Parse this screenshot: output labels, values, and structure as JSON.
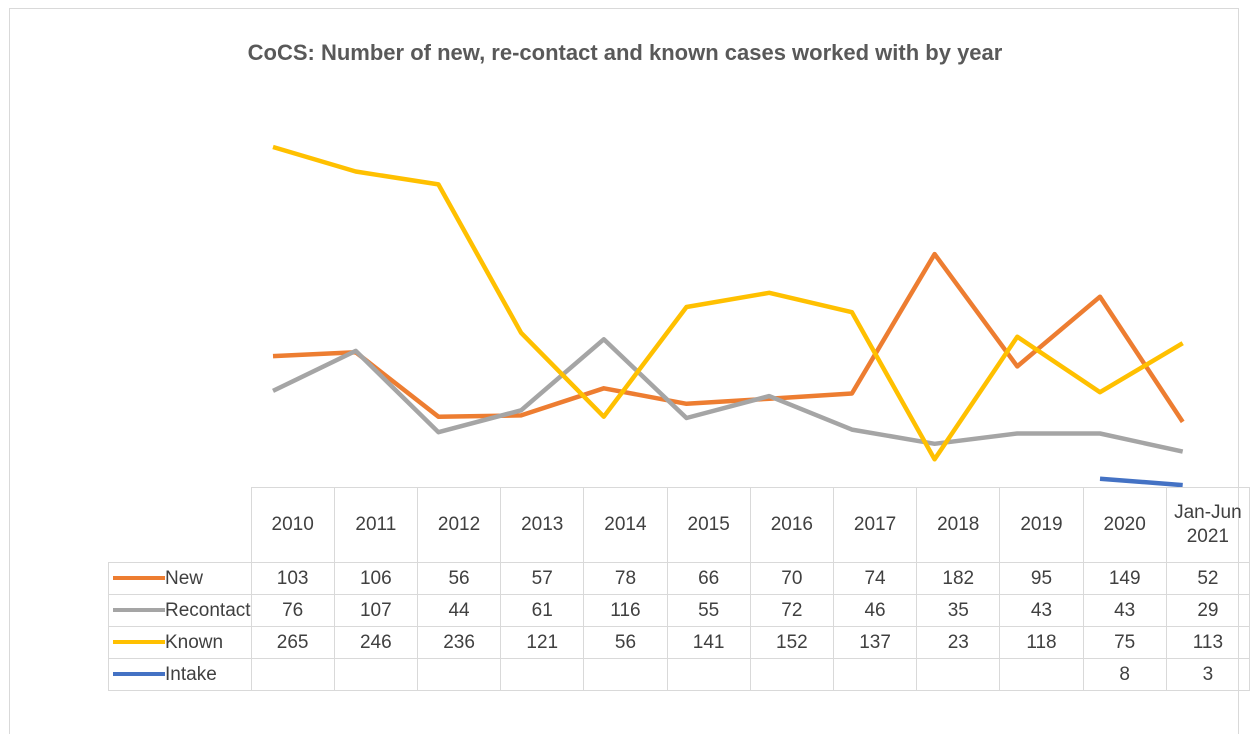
{
  "chart_data": {
    "type": "line",
    "title": "CoCS: Number of new, re-contact and known cases worked with by year",
    "categories": [
      "2010",
      "2011",
      "2012",
      "2013",
      "2014",
      "2015",
      "2016",
      "2017",
      "2018",
      "2019",
      "2020",
      "Jan-Jun 2021"
    ],
    "series": [
      {
        "name": "New",
        "color": "#ed7d31",
        "values": [
          103,
          106,
          56,
          57,
          78,
          66,
          70,
          74,
          182,
          95,
          149,
          52
        ]
      },
      {
        "name": "Recontact",
        "color": "#a5a5a5",
        "values": [
          76,
          107,
          44,
          61,
          116,
          55,
          72,
          46,
          35,
          43,
          43,
          29
        ]
      },
      {
        "name": "Known",
        "color": "#ffc000",
        "values": [
          265,
          246,
          236,
          121,
          56,
          141,
          152,
          137,
          23,
          118,
          75,
          113
        ]
      },
      {
        "name": "Intake",
        "color": "#4472c4",
        "values": [
          null,
          null,
          null,
          null,
          null,
          null,
          null,
          null,
          null,
          null,
          8,
          3
        ]
      }
    ],
    "legend": "table"
  }
}
